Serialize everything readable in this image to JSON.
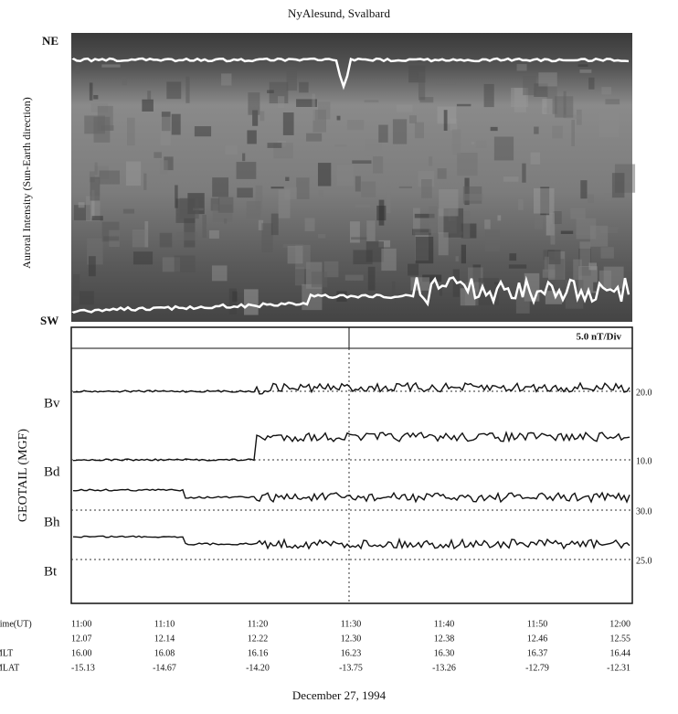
{
  "title": "NyAlesund, Svalbard",
  "keogram": {
    "y_label": "Auroral Intensity (Sun-Earth direction)",
    "top_label": "NE",
    "bottom_label": "SW"
  },
  "magnetometer": {
    "scale_label": "5.0 nT/Div",
    "y_label": "GEOTAIL (MGF)",
    "traces": [
      {
        "name": "Bv",
        "level_label": "20.0"
      },
      {
        "name": "Bd",
        "level_label": "10.0"
      },
      {
        "name": "Bh",
        "level_label": "30.0"
      },
      {
        "name": "Bt",
        "level_label": "25.0"
      }
    ]
  },
  "time_axis": {
    "rows": [
      {
        "label": "Time(UT)",
        "values": [
          "11:00",
          "11:10",
          "11:20",
          "11:30",
          "11:40",
          "11:50",
          "12:00"
        ]
      },
      {
        "label": "",
        "values": [
          "12.07",
          "12.14",
          "12.22",
          "12.30",
          "12.38",
          "12.46",
          "12.55"
        ]
      },
      {
        "label": "MLT",
        "values": [
          "16.00",
          "16.08",
          "16.16",
          "16.23",
          "16.30",
          "16.37",
          "16.44"
        ]
      },
      {
        "label": "MLAT",
        "values": [
          "-15.13",
          "-14.67",
          "-14.20",
          "-13.75",
          "-13.26",
          "-12.79",
          "-12.31"
        ]
      }
    ]
  },
  "caption": "December 27, 1994"
}
